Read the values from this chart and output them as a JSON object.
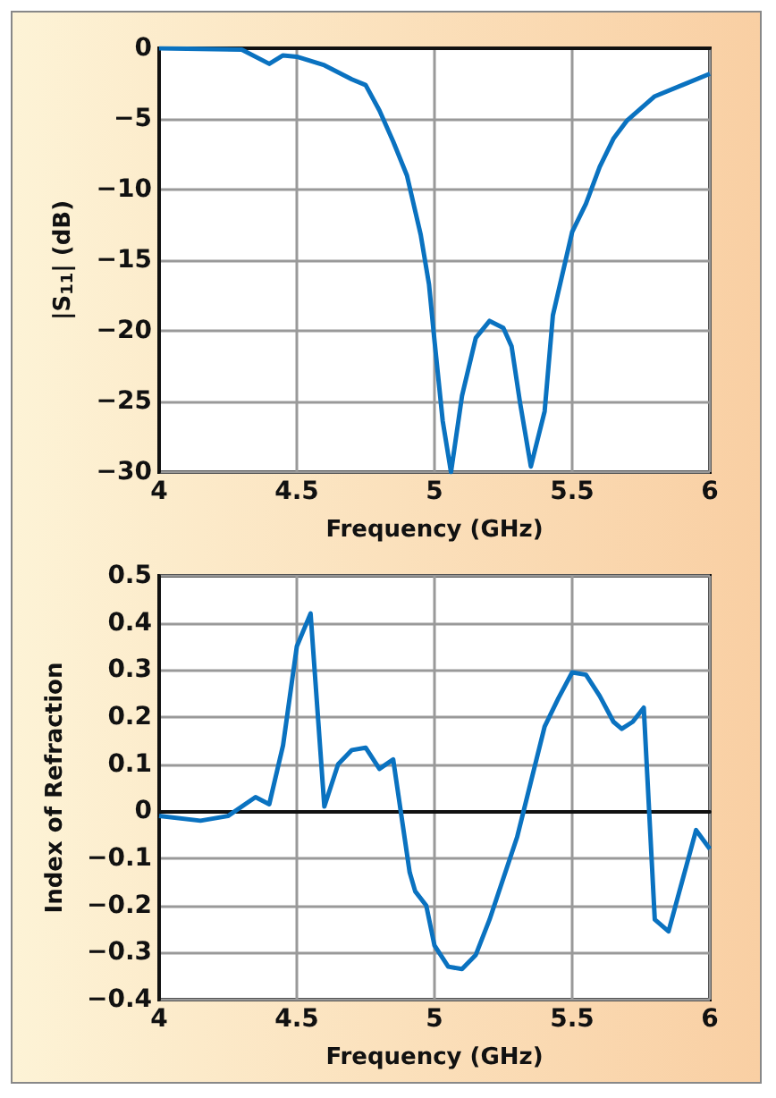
{
  "chart_data": [
    {
      "type": "line",
      "xlabel": "Frequency (GHz)",
      "ylabel": "|S$_{11}$| (dB)",
      "xlim": [
        4,
        6
      ],
      "xticks": [
        4,
        4.5,
        5,
        5.5,
        6
      ],
      "ylim": [
        -30,
        0
      ],
      "yticks": [
        -30,
        -25,
        -20,
        -15,
        -10,
        -5,
        0
      ],
      "grid": true,
      "marker": "none",
      "line_style": "solid",
      "series": [
        {
          "color": "#0a72c0",
          "x": [
            4,
            4.3,
            4.4,
            4.45,
            4.5,
            4.6,
            4.7,
            4.75,
            4.8,
            4.85,
            4.9,
            4.95,
            4.98,
            5.0,
            5.03,
            5.06,
            5.1,
            5.15,
            5.2,
            5.25,
            5.28,
            5.31,
            5.35,
            5.4,
            5.43,
            5.5,
            5.55,
            5.6,
            5.65,
            5.7,
            5.8,
            5.9,
            6
          ],
          "values": [
            0,
            -0.1,
            -1.1,
            -0.5,
            -0.6,
            -1.2,
            -2.2,
            -2.6,
            -4.4,
            -6.6,
            -9,
            -13.2,
            -16.7,
            -20.7,
            -26.4,
            -30,
            -24.6,
            -20.5,
            -19.3,
            -19.8,
            -21.1,
            -25,
            -29.6,
            -25.7,
            -18.9,
            -13,
            -11,
            -8.4,
            -6.4,
            -5.1,
            -3.4,
            -2.6,
            -1.8
          ]
        }
      ]
    },
    {
      "type": "line",
      "xlabel": "Frequency (GHz)",
      "ylabel": "Index of Refraction",
      "xlim": [
        4,
        6
      ],
      "xticks": [
        4,
        4.5,
        5,
        5.5,
        6
      ],
      "ylim": [
        -0.4,
        0.5
      ],
      "yticks": [
        -0.4,
        -0.3,
        -0.2,
        -0.1,
        0,
        0.1,
        0.2,
        0.3,
        0.4,
        0.5
      ],
      "grid": true,
      "marker": "none",
      "line_style": "solid",
      "series": [
        {
          "color": "#0a72c0",
          "x": [
            4,
            4.15,
            4.25,
            4.35,
            4.4,
            4.45,
            4.5,
            4.55,
            4.6,
            4.65,
            4.7,
            4.75,
            4.8,
            4.85,
            4.91,
            4.93,
            4.97,
            5.0,
            5.05,
            5.1,
            5.15,
            5.2,
            5.3,
            5.4,
            5.45,
            5.5,
            5.55,
            5.6,
            5.65,
            5.68,
            5.72,
            5.76,
            5.8,
            5.85,
            5.95,
            6
          ],
          "values": [
            -0.01,
            -0.02,
            -0.01,
            0.03,
            0.015,
            0.14,
            0.35,
            0.42,
            0.01,
            0.1,
            0.13,
            0.135,
            0.09,
            0.11,
            -0.13,
            -0.17,
            -0.2,
            -0.285,
            -0.33,
            -0.335,
            -0.305,
            -0.23,
            -0.055,
            0.18,
            0.24,
            0.295,
            0.29,
            0.245,
            0.19,
            0.175,
            0.19,
            0.22,
            -0.23,
            -0.255,
            -0.04,
            -0.08
          ]
        }
      ]
    }
  ]
}
